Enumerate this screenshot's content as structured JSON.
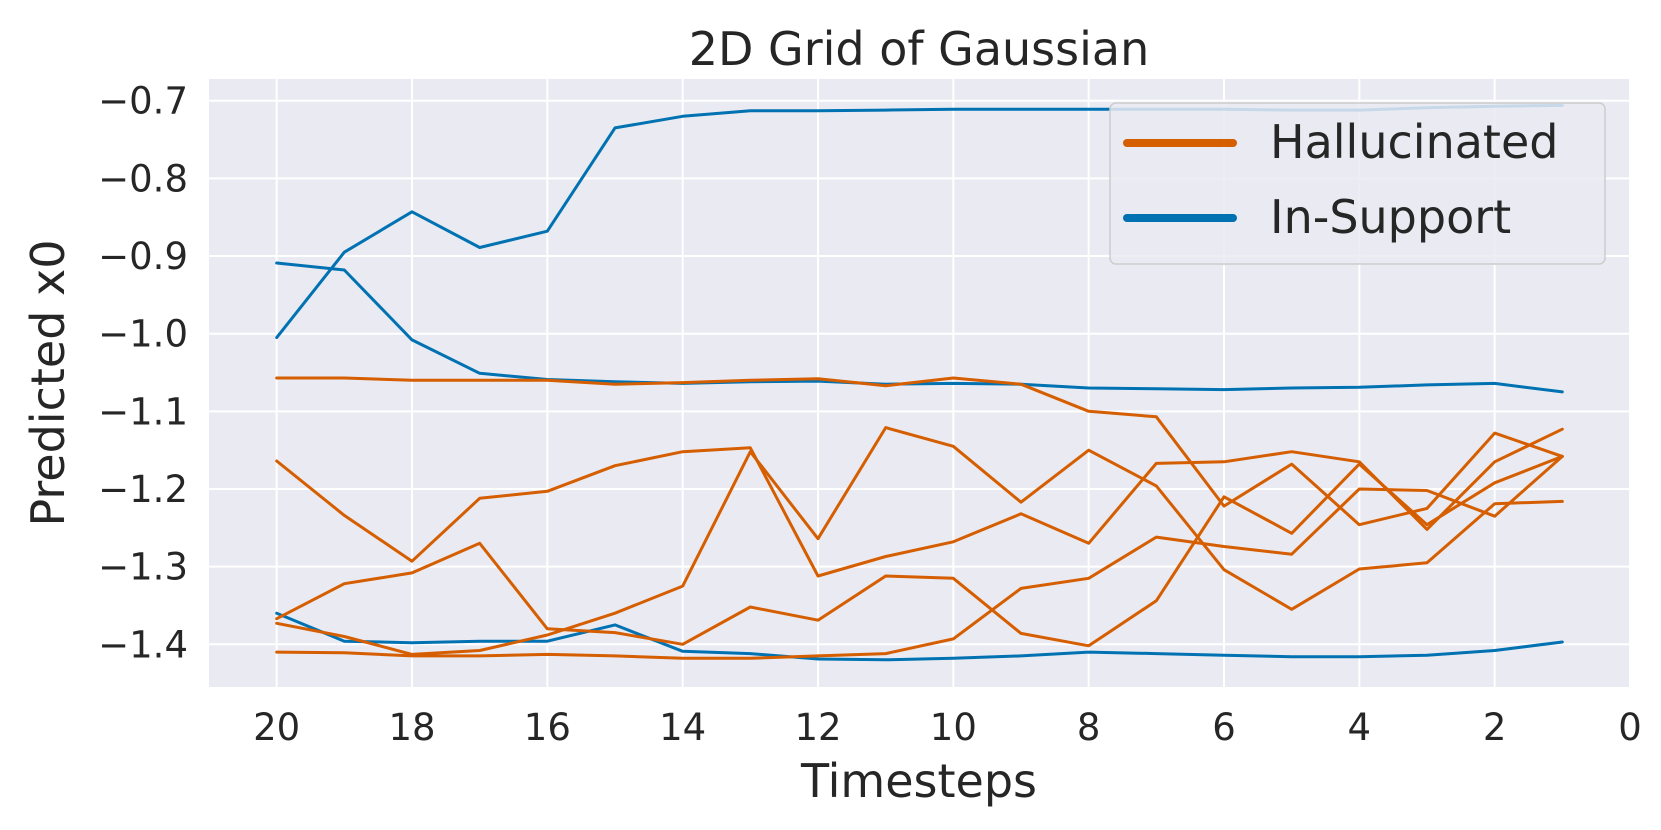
{
  "chart_data": {
    "type": "line",
    "title": "2D Grid of Gaussian",
    "xlabel": "Timesteps",
    "ylabel": "Predicted x0",
    "xlim": [
      21,
      0
    ],
    "ylim": [
      -1.455,
      -0.672
    ],
    "x_ticks": [
      20,
      18,
      16,
      14,
      12,
      10,
      8,
      6,
      4,
      2,
      0
    ],
    "y_ticks": [
      -0.7,
      -0.8,
      -0.9,
      -1.0,
      -1.1,
      -1.2,
      -1.3,
      -1.4
    ],
    "x_tick_labels": [
      "20",
      "18",
      "16",
      "14",
      "12",
      "10",
      "8",
      "6",
      "4",
      "2",
      "0"
    ],
    "y_tick_labels": [
      "−0.7",
      "−0.8",
      "−0.9",
      "−1.0",
      "−1.1",
      "−1.2",
      "−1.3",
      "−1.4"
    ],
    "grid": true,
    "legend_position": "top-right",
    "legend": [
      {
        "label": "Hallucinated",
        "color": "#D55E00"
      },
      {
        "label": "In-Support",
        "color": "#0072B2"
      }
    ],
    "x": [
      20,
      19,
      18,
      17,
      16,
      15,
      14,
      13,
      12,
      11,
      10,
      9,
      8,
      7,
      6,
      5,
      4,
      3,
      2,
      1
    ],
    "series": [
      {
        "group": "In-Support",
        "color": "#0072B2",
        "values": [
          -1.005,
          -0.895,
          -0.843,
          -0.889,
          -0.868,
          -0.735,
          -0.72,
          -0.713,
          -0.713,
          -0.712,
          -0.711,
          -0.711,
          -0.711,
          -0.711,
          -0.711,
          -0.712,
          -0.712,
          -0.709,
          -0.707,
          -0.706
        ]
      },
      {
        "group": "In-Support",
        "color": "#0072B2",
        "values": [
          -0.909,
          -0.918,
          -1.008,
          -1.051,
          -1.059,
          -1.062,
          -1.064,
          -1.062,
          -1.061,
          -1.065,
          -1.064,
          -1.065,
          -1.07,
          -1.071,
          -1.072,
          -1.07,
          -1.069,
          -1.066,
          -1.064,
          -1.075
        ]
      },
      {
        "group": "In-Support",
        "color": "#0072B2",
        "values": [
          -1.36,
          -1.396,
          -1.398,
          -1.396,
          -1.396,
          -1.375,
          -1.409,
          -1.412,
          -1.419,
          -1.42,
          -1.418,
          -1.415,
          -1.41,
          -1.412,
          -1.414,
          -1.416,
          -1.416,
          -1.414,
          -1.408,
          -1.397
        ]
      },
      {
        "group": "Hallucinated",
        "color": "#D55E00",
        "values": [
          -1.057,
          -1.057,
          -1.06,
          -1.06,
          -1.06,
          -1.065,
          -1.063,
          -1.06,
          -1.058,
          -1.067,
          -1.057,
          -1.065,
          -1.1,
          -1.107,
          -1.222,
          -1.168,
          -1.246,
          -1.225,
          -1.128,
          -1.158
        ]
      },
      {
        "group": "Hallucinated",
        "color": "#D55E00",
        "values": [
          -1.164,
          -1.234,
          -1.293,
          -1.212,
          -1.203,
          -1.17,
          -1.152,
          -1.147,
          -1.312,
          -1.287,
          -1.268,
          -1.232,
          -1.27,
          -1.167,
          -1.165,
          -1.152,
          -1.165,
          -1.252,
          -1.165,
          -1.123
        ]
      },
      {
        "group": "Hallucinated",
        "color": "#D55E00",
        "values": [
          -1.367,
          -1.322,
          -1.308,
          -1.27,
          -1.38,
          -1.385,
          -1.4,
          -1.352,
          -1.369,
          -1.312,
          -1.315,
          -1.386,
          -1.402,
          -1.344,
          -1.21,
          -1.257,
          -1.168,
          -1.246,
          -1.192,
          -1.158
        ]
      },
      {
        "group": "Hallucinated",
        "color": "#D55E00",
        "values": [
          -1.373,
          -1.39,
          -1.413,
          -1.408,
          -1.388,
          -1.36,
          -1.325,
          -1.152,
          -1.264,
          -1.121,
          -1.145,
          -1.217,
          -1.15,
          -1.196,
          -1.304,
          -1.355,
          -1.303,
          -1.295,
          -1.219,
          -1.216
        ]
      },
      {
        "group": "Hallucinated",
        "color": "#D55E00",
        "values": [
          -1.41,
          -1.411,
          -1.415,
          -1.415,
          -1.413,
          -1.415,
          -1.418,
          -1.418,
          -1.415,
          -1.412,
          -1.393,
          -1.328,
          -1.315,
          -1.262,
          -1.274,
          -1.284,
          -1.2,
          -1.202,
          -1.235,
          -1.158
        ]
      }
    ]
  }
}
